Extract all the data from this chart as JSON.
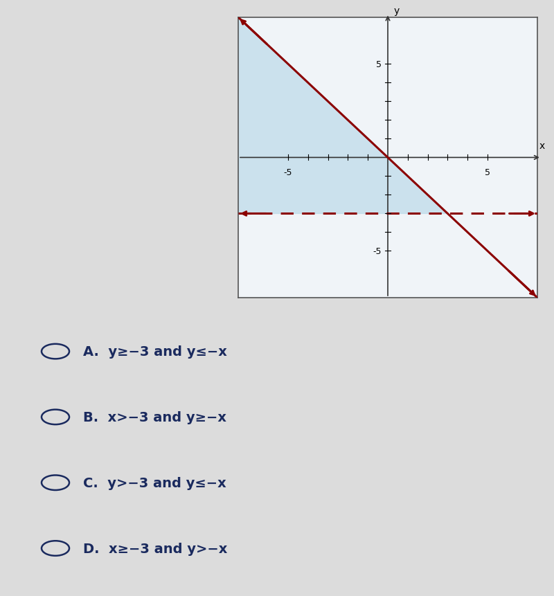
{
  "xlim": [
    -7.5,
    7.5
  ],
  "ylim": [
    -7.5,
    7.5
  ],
  "line1_color": "#8B0000",
  "line2_color": "#8B0000",
  "shade_color": "#B8D8E8",
  "shade_alpha": 0.65,
  "bg_color": "#DCDCDC",
  "plot_bg_color": "#F0F4F8",
  "choice_A": "A.  y≥−3 and y≤−x",
  "choice_B": "B.  x>−3 and y≥−x",
  "choice_C": "C.  y>−3 and y≤−x",
  "choice_D": "D.  x≥−3 and y>−x",
  "text_color": "#1a2a5e",
  "circle_color": "#1a2a5e",
  "tick_positions": [
    -5,
    -4,
    -3,
    -2,
    -1,
    1,
    2,
    3,
    4,
    5
  ],
  "label_ticks": [
    -5,
    5
  ],
  "y_label_ticks": [
    5,
    -5
  ],
  "dashed_y": -3
}
